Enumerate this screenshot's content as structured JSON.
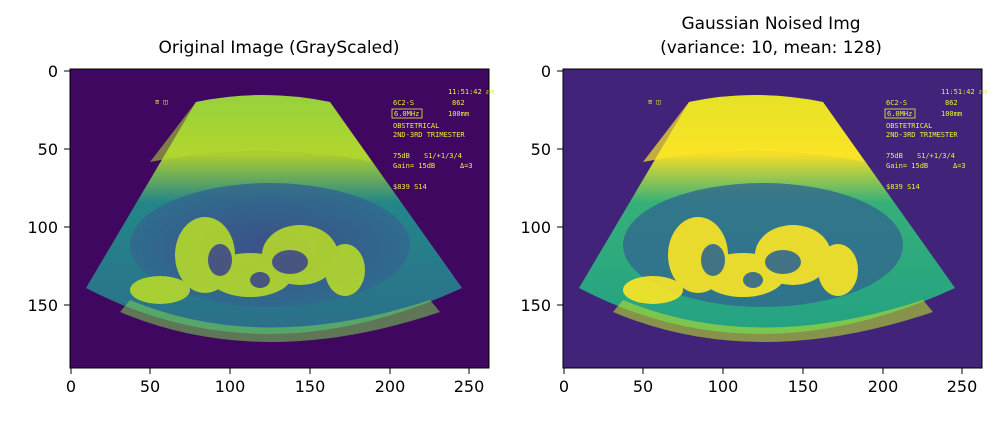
{
  "figure": {
    "panels": [
      {
        "id": "original",
        "title_lines": [
          "Original Image (GrayScaled)"
        ],
        "overlay": {
          "time": "11:51:42 am",
          "probe": "6C2-S",
          "probe_code": "862",
          "freq_box": "6.0MHz",
          "depth": "100mm",
          "exam": "OBSTETRICAL",
          "trimester": "2ND-3RD TRIMESTER",
          "power": "75dB",
          "setting": "S1/+1/3/4",
          "gain": "Gain= 15dB",
          "delta": "Δ=3",
          "store": "$839 S14"
        }
      },
      {
        "id": "noised",
        "title_lines": [
          "Gaussian Noised Img",
          "(variance: 10, mean: 128)"
        ],
        "overlay": {
          "time": "11:51:42 am",
          "probe": "6C2-S",
          "probe_code": "862",
          "freq_box": "6.0MHz",
          "depth": "100mm",
          "exam": "OBSTETRICAL",
          "trimester": "2ND-3RD TRIMESTER",
          "power": "75dB",
          "setting": "S1/+1/3/4",
          "gain": "Gain= 15dB",
          "delta": "Δ=3",
          "store": "$839 S14"
        }
      }
    ],
    "x_ticks": [
      "0",
      "50",
      "100",
      "150",
      "200",
      "250"
    ],
    "y_ticks": [
      "0",
      "50",
      "100",
      "150"
    ],
    "colormap": "viridis",
    "colors": {
      "background": "#3b0f70",
      "dark": "#440154",
      "mid": "#21918c",
      "bright": "#fde725"
    }
  }
}
